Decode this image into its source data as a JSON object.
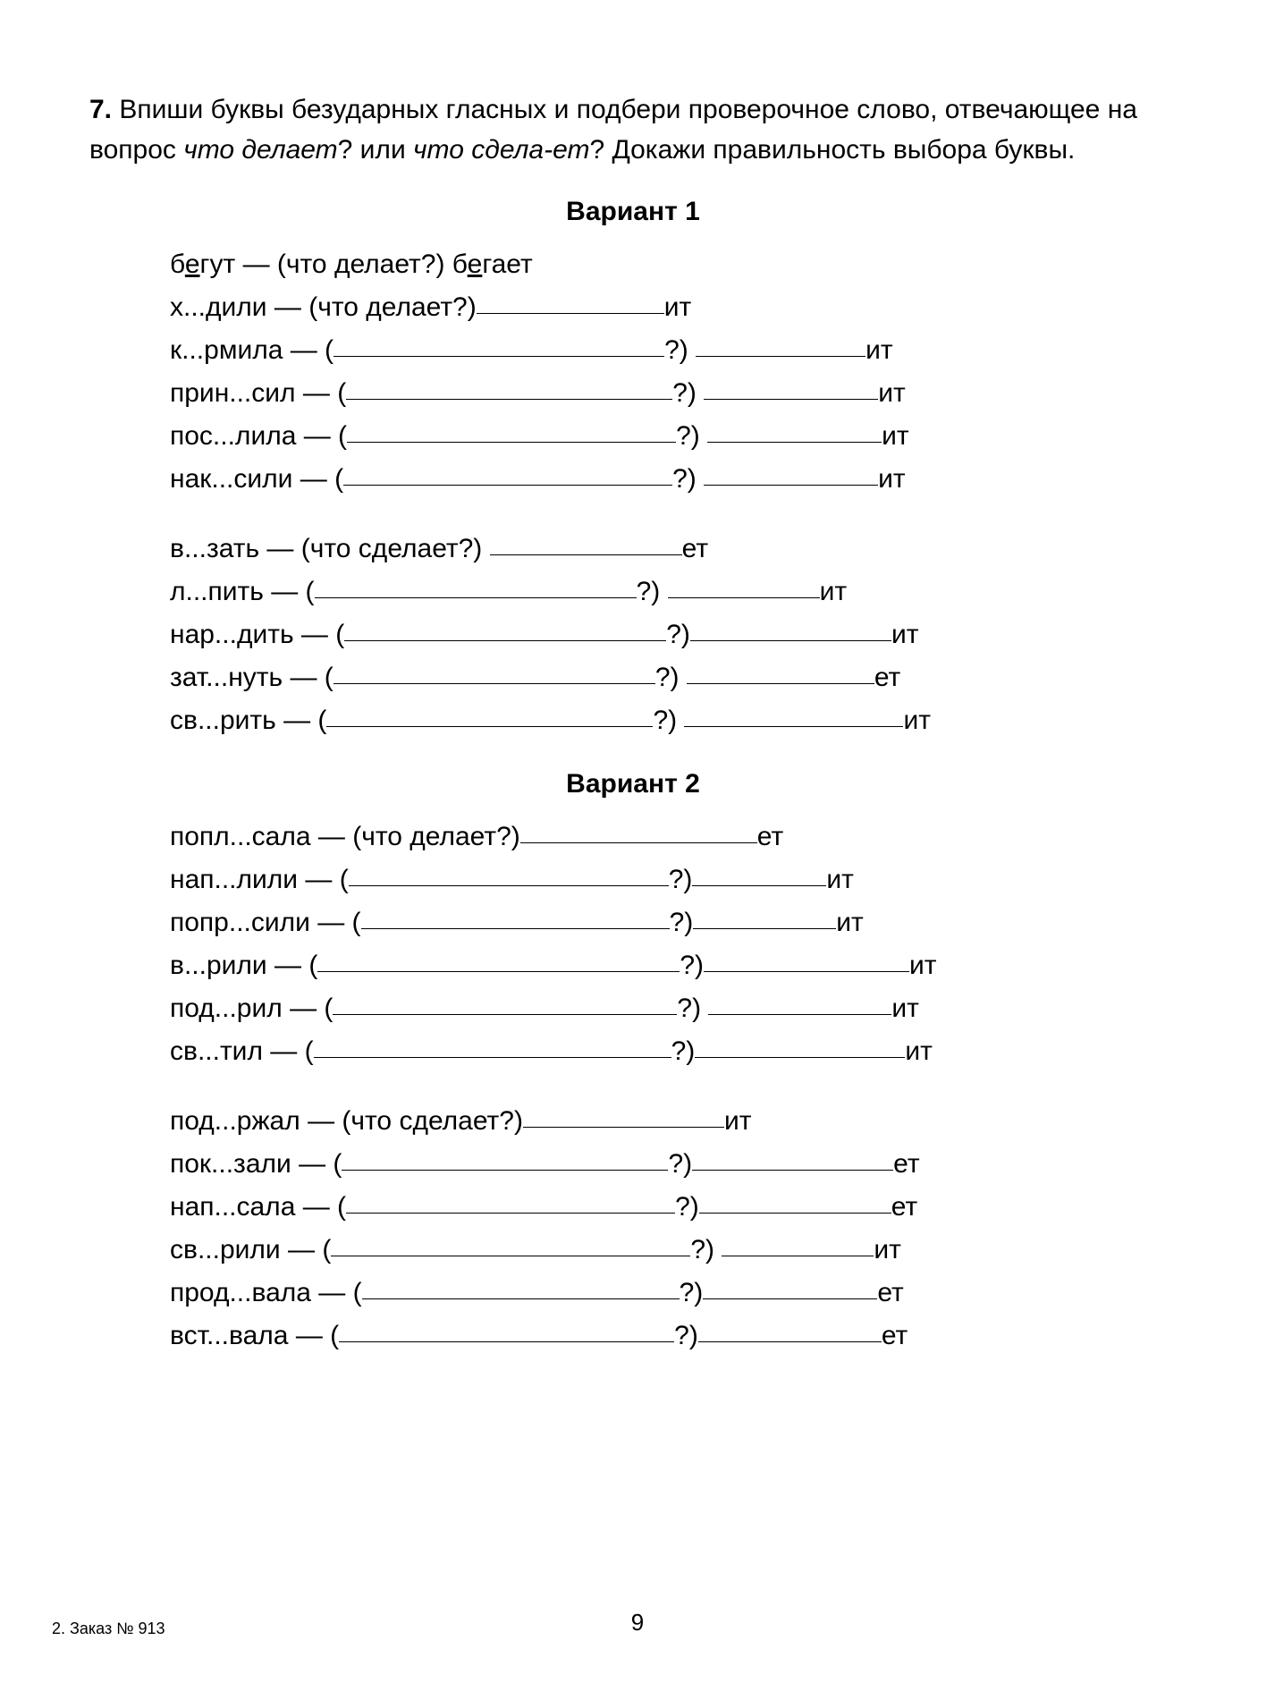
{
  "exercise": {
    "number": "7.",
    "text_parts": [
      "Впиши буквы безударных гласных и подбери проверочное слово, отвечающее на вопрос ",
      "что делает",
      "? или ",
      "что сдела-ет",
      "? Докажи правильность выбора буквы."
    ]
  },
  "variant1": {
    "title": "Вариант 1",
    "block1": {
      "example": {
        "word": "бегут",
        "underline_pos": 1,
        "dash": " — ",
        "q": "(что делает?) ",
        "answer": "бегает",
        "answer_underline_pos": 1
      },
      "rows": [
        {
          "word": "х...дили",
          "dash": " — ",
          "q": "(что делает?)",
          "blank1_w": 210,
          "suffix": "ит"
        },
        {
          "word": "к...рмила",
          "dash": " — (",
          "blank1_w": 370,
          "mid": "?) ",
          "blank2_w": 190,
          "suffix": "ит"
        },
        {
          "word": "прин...сил",
          "dash": " — (",
          "blank1_w": 365,
          "mid": "?) ",
          "blank2_w": 195,
          "suffix": "ит"
        },
        {
          "word": "пос...лила",
          "dash": " — (",
          "blank1_w": 368,
          "mid": "?) ",
          "blank2_w": 195,
          "suffix": "ит"
        },
        {
          "word": "нак...сили",
          "dash": " — (",
          "blank1_w": 368,
          "mid": "?) ",
          "blank2_w": 195,
          "suffix": "ит"
        }
      ]
    },
    "block2": {
      "rows": [
        {
          "word": "в...зать",
          "dash": " — ",
          "q": "(что сделает?) ",
          "blank1_w": 215,
          "suffix": "ет"
        },
        {
          "word": "л...пить",
          "dash": " — (",
          "blank1_w": 360,
          "mid": "?) ",
          "blank2_w": 170,
          "suffix": "ит"
        },
        {
          "word": "нар...дить",
          "dash": " — (",
          "blank1_w": 360,
          "mid": "?)",
          "blank2_w": 225,
          "suffix": "ит"
        },
        {
          "word": "зат...нуть",
          "dash": " — (",
          "blank1_w": 360,
          "mid": "?) ",
          "blank2_w": 210,
          "suffix": "ет"
        },
        {
          "word": "св...рить",
          "dash": " — (",
          "blank1_w": 365,
          "mid": "?) ",
          "blank2_w": 245,
          "suffix": "ит"
        }
      ]
    }
  },
  "variant2": {
    "title": "Вариант 2",
    "block1": {
      "rows": [
        {
          "word": "попл...сала",
          "dash": " — ",
          "q": "(что делает?)",
          "blank1_w": 265,
          "suffix": "ет"
        },
        {
          "word": "нап...лили",
          "dash": " — (",
          "blank1_w": 358,
          "mid": "?)",
          "blank2_w": 150,
          "suffix": "ит"
        },
        {
          "word": "попр...сили",
          "dash": " — (",
          "blank1_w": 345,
          "mid": "?)",
          "blank2_w": 160,
          "suffix": "ит"
        },
        {
          "word": "в...рили",
          "dash": " — (",
          "blank1_w": 405,
          "mid": "?)",
          "blank2_w": 230,
          "suffix": "ит"
        },
        {
          "word": "под...рил",
          "dash": " — (",
          "blank1_w": 385,
          "mid": "?) ",
          "blank2_w": 205,
          "suffix": "ит"
        },
        {
          "word": "св...тил",
          "dash": " — (",
          "blank1_w": 400,
          "mid": "?)",
          "blank2_w": 235,
          "suffix": "ит"
        }
      ]
    },
    "block2": {
      "rows": [
        {
          "word": "под...ржал",
          "dash": " — ",
          "q": "(что сделает?)",
          "blank1_w": 225,
          "suffix": "ит"
        },
        {
          "word": "пок...зали",
          "dash": " — (",
          "blank1_w": 365,
          "mid": "?)",
          "blank2_w": 225,
          "suffix": "ет"
        },
        {
          "word": "нап...сала",
          "dash": " — (",
          "blank1_w": 368,
          "mid": "?)",
          "blank2_w": 215,
          "suffix": "ет"
        },
        {
          "word": "св...рили",
          "dash": " — (",
          "blank1_w": 402,
          "mid": "?) ",
          "blank2_w": 170,
          "suffix": "ит"
        },
        {
          "word": "прод...вала",
          "dash": " — (",
          "blank1_w": 355,
          "mid": "?)",
          "blank2_w": 195,
          "suffix": "ет"
        },
        {
          "word": "вст...вала",
          "dash": " — (",
          "blank1_w": 375,
          "mid": "?)",
          "blank2_w": 205,
          "suffix": "ет"
        }
      ]
    }
  },
  "page_number": "9",
  "footer_note": "2. Заказ № 913"
}
